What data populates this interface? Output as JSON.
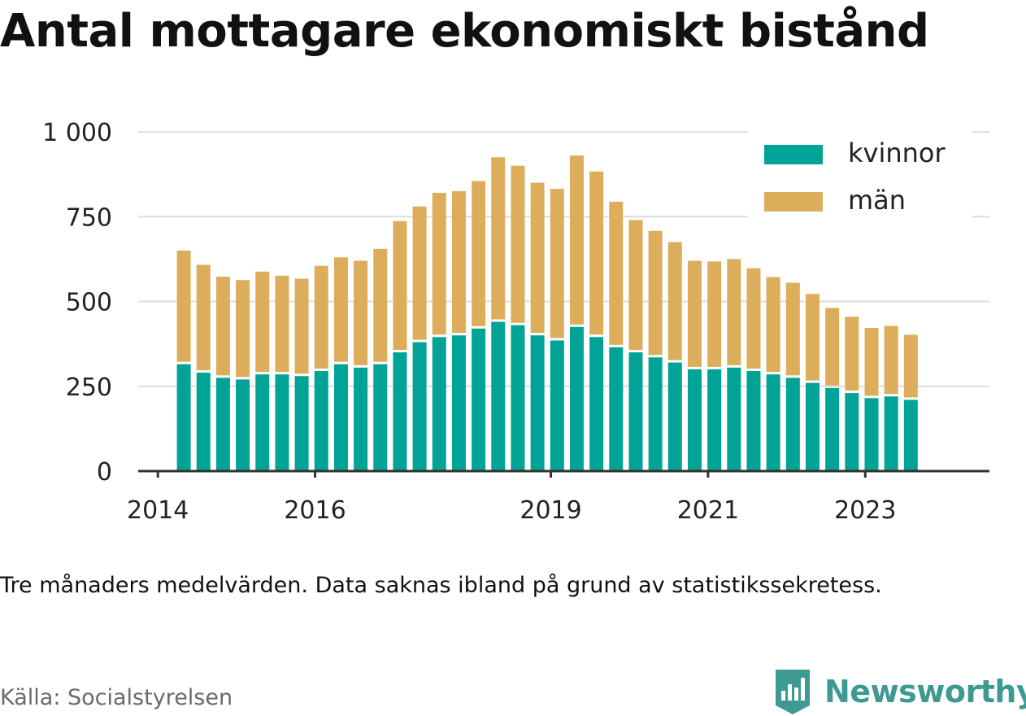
{
  "title": "Antal mottagare ekonomiskt bistånd",
  "note": "Tre månaders medelvärden. Data saknas ibland på grund av statistikssekretess.",
  "source": "Källa: Socialstyrelsen",
  "brand": {
    "name": "Newsworthy",
    "icon": "newsworthy-logo-icon",
    "color": "#3d9a93"
  },
  "colors": {
    "kvinnor": "#00a396",
    "man": "#dcae5c",
    "grid": "#dddddd",
    "axis": "#333333"
  },
  "chart_data": {
    "type": "bar",
    "stacked": true,
    "title": "Antal mottagare ekonomiskt bistånd",
    "xlabel": "",
    "ylabel": "",
    "ylim": [
      0,
      1000
    ],
    "yticks": [
      0,
      250,
      500,
      750,
      1000
    ],
    "ytick_labels": [
      "0",
      "250",
      "500",
      "750",
      "1 000"
    ],
    "xlim": [
      2013.75,
      2024.58
    ],
    "xticks": [
      2014,
      2016,
      2019,
      2021,
      2023
    ],
    "xtick_labels": [
      "2014",
      "2016",
      "2019",
      "2021",
      "2023"
    ],
    "grid": true,
    "legend": "top-right",
    "x": [
      2014.33,
      2014.58,
      2014.83,
      2015.08,
      2015.33,
      2015.58,
      2015.83,
      2016.08,
      2016.33,
      2016.58,
      2016.83,
      2017.08,
      2017.33,
      2017.58,
      2017.83,
      2018.08,
      2018.33,
      2018.58,
      2018.83,
      2019.08,
      2019.33,
      2019.58,
      2019.83,
      2020.08,
      2020.33,
      2020.58,
      2020.83,
      2021.08,
      2021.33,
      2021.58,
      2021.83,
      2022.08,
      2022.33,
      2022.58,
      2022.83,
      2023.08,
      2023.33,
      2023.58
    ],
    "series": [
      {
        "name": "kvinnor",
        "color": "#00a396",
        "values": [
          315,
          290,
          275,
          270,
          285,
          285,
          280,
          295,
          315,
          305,
          315,
          350,
          380,
          395,
          400,
          420,
          440,
          430,
          400,
          385,
          425,
          395,
          365,
          350,
          335,
          320,
          300,
          300,
          305,
          295,
          285,
          275,
          260,
          245,
          230,
          215,
          220,
          210
        ]
      },
      {
        "name": "män",
        "color": "#dcae5c",
        "values": [
          335,
          318,
          298,
          293,
          303,
          291,
          287,
          310,
          315,
          315,
          340,
          387,
          400,
          425,
          425,
          435,
          485,
          470,
          450,
          447,
          505,
          488,
          429,
          390,
          373,
          355,
          320,
          318,
          320,
          303,
          287,
          280,
          262,
          236,
          225,
          207,
          208,
          192
        ]
      }
    ]
  }
}
